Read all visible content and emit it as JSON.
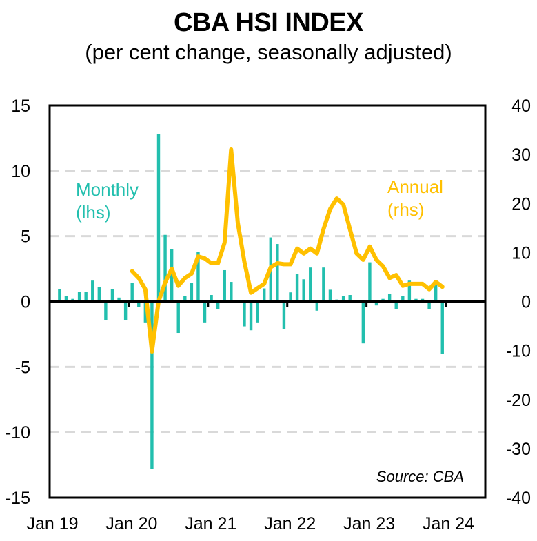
{
  "chart_data": {
    "type": "bar+line",
    "title": "CBA  HSI INDEX",
    "subtitle": "(per cent change, seasonally adjusted)",
    "source": "Source:  CBA",
    "x_tick_labels": [
      "Jan 19",
      "Jan 20",
      "Jan 21",
      "Jan 22",
      "Jan 23",
      "Jan 24"
    ],
    "x_range": [
      "Jan 19",
      "Jun 24"
    ],
    "left_axis": {
      "label": "lhs",
      "ylim": [
        -15,
        15
      ],
      "ticks": [
        15,
        10,
        5,
        0,
        -5,
        -10,
        -15
      ]
    },
    "right_axis": {
      "label": "rhs",
      "ylim": [
        -40,
        40
      ],
      "ticks": [
        40,
        30,
        20,
        10,
        0,
        -10,
        -20,
        -30,
        -40
      ]
    },
    "grid": "horizontal dashed",
    "colors": {
      "monthly": "#22BFAE",
      "annual": "#FFC000"
    },
    "annotations": [
      {
        "text_line1": "Monthly",
        "text_line2": "(lhs)",
        "series": "monthly"
      },
      {
        "text_line1": "Annual",
        "text_line2": "(rhs)",
        "series": "annual"
      }
    ],
    "series": [
      {
        "name": "Monthly",
        "type": "bar",
        "axis": "left",
        "start": "Feb 19",
        "values": [
          0.95,
          0.4,
          0.2,
          0.75,
          0.75,
          1.6,
          1.1,
          -1.4,
          0.95,
          0.3,
          -1.4,
          1.4,
          -0.4,
          -1.6,
          -12.8,
          12.8,
          5.1,
          4.0,
          -2.4,
          0.4,
          1.4,
          3.8,
          -1.6,
          0.5,
          -0.6,
          2.4,
          1.5,
          0.05,
          -1.9,
          -2.2,
          -1.6,
          1.0,
          4.9,
          4.4,
          -2.1,
          0.7,
          2.1,
          1.7,
          2.6,
          -0.7,
          2.6,
          0.9,
          0.15,
          0.4,
          0.5,
          0.05,
          -3.2,
          3.0,
          -0.3,
          0.2,
          0.6,
          -0.6,
          0.4,
          1.6,
          0.2,
          0.2,
          -0.6,
          1.6,
          -4.0
        ]
      },
      {
        "name": "Annual",
        "type": "line",
        "axis": "right",
        "start": "Jan 20",
        "values": [
          6.2,
          4.8,
          2.5,
          -10.2,
          0.0,
          3.9,
          6.7,
          3.2,
          4.8,
          5.7,
          9.2,
          8.8,
          7.8,
          7.8,
          12.0,
          31.0,
          16.1,
          8.1,
          1.8,
          2.7,
          3.6,
          7.0,
          7.8,
          7.6,
          7.6,
          10.8,
          9.8,
          10.8,
          9.8,
          14.8,
          18.9,
          21.0,
          19.8,
          14.7,
          9.8,
          8.5,
          11.2,
          8.5,
          7.2,
          4.8,
          5.4,
          3.2,
          3.6,
          3.6,
          3.6,
          2.5,
          4.0,
          3.0
        ]
      }
    ]
  }
}
